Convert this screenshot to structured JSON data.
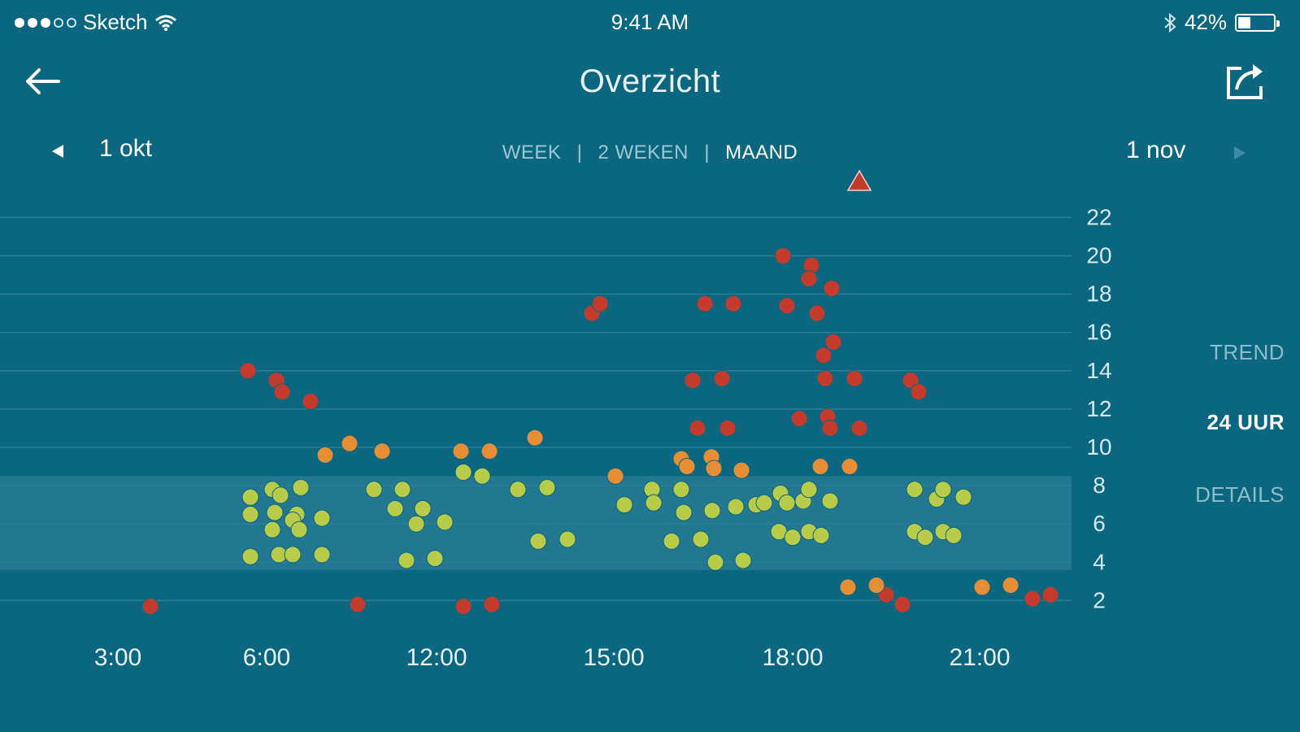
{
  "status_bar": {
    "carrier": "Sketch",
    "time": "9:41 AM",
    "battery": "42%",
    "battery_level": 0.42
  },
  "nav": {
    "title": "Overzicht",
    "back_icon": "arrow-left-icon",
    "share_icon": "share-icon"
  },
  "range": {
    "start": "1 okt",
    "end": "1 nov",
    "segments": [
      {
        "label": "WEEK",
        "active": false
      },
      {
        "label": "2 WEKEN",
        "active": false
      },
      {
        "label": "MAAND",
        "active": true
      }
    ]
  },
  "side_menu": [
    {
      "label": "TREND",
      "active": false
    },
    {
      "label": "24 UUR",
      "active": true
    },
    {
      "label": "DETAILS",
      "active": false
    }
  ],
  "colors": {
    "background": "#0b6680",
    "target_band": "#2a7f95",
    "low": "#c23b2c",
    "in_range": "#b9cc4a",
    "elevated": "#e58e36",
    "high": "#c23b2c"
  },
  "chart_data": {
    "type": "scatter",
    "x_tick_labels": [
      "3:00",
      "6:00",
      "12:00",
      "15:00",
      "18:00",
      "21:00"
    ],
    "y_ticks": [
      2,
      4,
      6,
      8,
      10,
      12,
      14,
      16,
      18,
      20,
      22
    ],
    "ylim": [
      0.8,
      22.3
    ],
    "target_band": [
      3.6,
      8.5
    ],
    "marker_icon": "triangle-marker-icon",
    "series": [
      {
        "color": "#c23b2c",
        "points": [
          [
            185,
            1.7
          ],
          [
            440,
            1.8
          ],
          [
            570,
            1.7
          ],
          [
            605,
            1.8
          ],
          [
            1110,
            1.8
          ],
          [
            1090,
            2.3
          ],
          [
            1270,
            2.1
          ],
          [
            1292,
            2.3
          ],
          [
            305,
            14.0
          ],
          [
            340,
            13.5
          ],
          [
            347,
            12.9
          ],
          [
            382,
            12.4
          ],
          [
            728,
            17.0
          ],
          [
            738,
            17.5
          ],
          [
            867,
            17.5
          ],
          [
            902,
            17.5
          ],
          [
            852,
            13.5
          ],
          [
            888,
            13.6
          ],
          [
            858,
            11.0
          ],
          [
            895,
            11.0
          ],
          [
            963,
            20.0
          ],
          [
            998,
            19.5
          ],
          [
            995,
            18.8
          ],
          [
            1023,
            18.3
          ],
          [
            968,
            17.4
          ],
          [
            1005,
            17.0
          ],
          [
            1025,
            15.5
          ],
          [
            1013,
            14.8
          ],
          [
            1015,
            13.6
          ],
          [
            1051,
            13.6
          ],
          [
            983,
            11.5
          ],
          [
            1018,
            11.6
          ],
          [
            1021,
            11.0
          ],
          [
            1057,
            11.0
          ],
          [
            1120,
            13.5
          ],
          [
            1130,
            12.9
          ]
        ]
      },
      {
        "color": "#e58e36",
        "points": [
          [
            400,
            9.6
          ],
          [
            430,
            10.2
          ],
          [
            470,
            9.8
          ],
          [
            567,
            9.8
          ],
          [
            602,
            9.8
          ],
          [
            658,
            10.5
          ],
          [
            757,
            8.5
          ],
          [
            838,
            9.4
          ],
          [
            845,
            9.0
          ],
          [
            875,
            9.5
          ],
          [
            878,
            8.9
          ],
          [
            912,
            8.8
          ],
          [
            1009,
            9.0
          ],
          [
            1045,
            9.0
          ],
          [
            1043,
            2.7
          ],
          [
            1078,
            2.8
          ],
          [
            1208,
            2.7
          ],
          [
            1243,
            2.8
          ]
        ]
      },
      {
        "color": "#b9cc4a",
        "points": [
          [
            308,
            7.4
          ],
          [
            308,
            6.5
          ],
          [
            335,
            7.8
          ],
          [
            345,
            7.5
          ],
          [
            370,
            7.9
          ],
          [
            338,
            6.6
          ],
          [
            365,
            6.5
          ],
          [
            360,
            6.2
          ],
          [
            396,
            6.3
          ],
          [
            335,
            5.7
          ],
          [
            368,
            5.7
          ],
          [
            308,
            4.3
          ],
          [
            343,
            4.4
          ],
          [
            360,
            4.4
          ],
          [
            396,
            4.4
          ],
          [
            460,
            7.8
          ],
          [
            495,
            7.8
          ],
          [
            486,
            6.8
          ],
          [
            520,
            6.8
          ],
          [
            512,
            6.0
          ],
          [
            547,
            6.1
          ],
          [
            500,
            4.1
          ],
          [
            535,
            4.2
          ],
          [
            570,
            8.7
          ],
          [
            593,
            8.5
          ],
          [
            637,
            7.8
          ],
          [
            673,
            7.9
          ],
          [
            662,
            5.1
          ],
          [
            698,
            5.2
          ],
          [
            768,
            7.0
          ],
          [
            802,
            7.8
          ],
          [
            804,
            7.1
          ],
          [
            838,
            7.8
          ],
          [
            841,
            6.6
          ],
          [
            876,
            6.7
          ],
          [
            905,
            6.9
          ],
          [
            930,
            7.0
          ],
          [
            940,
            7.1
          ],
          [
            960,
            7.6
          ],
          [
            968,
            7.1
          ],
          [
            988,
            7.2
          ],
          [
            995,
            7.8
          ],
          [
            1021,
            7.2
          ],
          [
            826,
            5.1
          ],
          [
            862,
            5.2
          ],
          [
            880,
            4.0
          ],
          [
            914,
            4.1
          ],
          [
            958,
            5.6
          ],
          [
            975,
            5.3
          ],
          [
            995,
            5.6
          ],
          [
            1010,
            5.4
          ],
          [
            1125,
            7.8
          ],
          [
            1152,
            7.3
          ],
          [
            1160,
            7.8
          ],
          [
            1185,
            7.4
          ],
          [
            1125,
            5.6
          ],
          [
            1138,
            5.3
          ],
          [
            1160,
            5.6
          ],
          [
            1173,
            5.4
          ]
        ]
      }
    ]
  }
}
